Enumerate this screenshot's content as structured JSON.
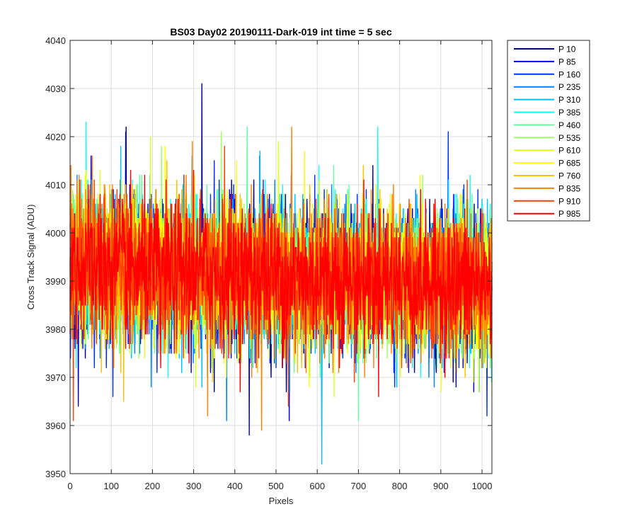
{
  "chart_data": {
    "type": "line",
    "title": "BS03 Day02 20190111-Dark-019 int time = 5 sec",
    "xlabel": "Pixels",
    "ylabel": "Cross Track Signal (ADU)",
    "xlim": [
      0,
      1024
    ],
    "ylim": [
      3950,
      4040
    ],
    "xticks": [
      0,
      100,
      200,
      300,
      400,
      500,
      600,
      700,
      800,
      900,
      1000
    ],
    "yticks": [
      3950,
      3960,
      3970,
      3980,
      3990,
      4000,
      4010,
      4020,
      4030,
      4040
    ],
    "grid": true,
    "legend_position": "outside-top-right",
    "noise_description": "dense noisy traces centered near 3990 ADU, mostly within 3975-4005",
    "mean_start": 3993,
    "mean_end": 3989,
    "series": [
      {
        "name": "P 10",
        "color": "#00008f",
        "spikes": [
          [
            320,
            4031
          ],
          [
            136,
            4022
          ]
        ]
      },
      {
        "name": "P 85",
        "color": "#0000df",
        "spikes": [
          [
            435,
            3958
          ],
          [
            532,
            3961
          ],
          [
            135,
            4021
          ]
        ]
      },
      {
        "name": "P 160",
        "color": "#0030ff",
        "spikes": [
          [
            918,
            4021
          ],
          [
            350,
            4015
          ],
          [
            1012,
            3962
          ]
        ]
      },
      {
        "name": "P 235",
        "color": "#0080ff",
        "spikes": [
          [
            380,
            3961
          ],
          [
            460,
            4016
          ]
        ]
      },
      {
        "name": "P 310",
        "color": "#00c0ff",
        "spikes": [
          [
            611,
            3952
          ],
          [
            320,
            3968
          ]
        ]
      },
      {
        "name": "P 385",
        "color": "#10ffef",
        "spikes": [
          [
            39,
            4023
          ],
          [
            747,
            4022
          ]
        ]
      },
      {
        "name": "P 460",
        "color": "#60ffa0",
        "spikes": [
          [
            700,
            3961
          ],
          [
            640,
            4014
          ]
        ]
      },
      {
        "name": "P 535",
        "color": "#9fff60",
        "spikes": [
          [
            367,
            4021
          ],
          [
            222,
            4018
          ]
        ]
      },
      {
        "name": "P 610",
        "color": "#dfff20",
        "spikes": [
          [
            506,
            4019
          ],
          [
            195,
            4020
          ]
        ]
      },
      {
        "name": "P 685",
        "color": "#ffff00",
        "spikes": [
          [
            850,
            4012
          ],
          [
            580,
            3968
          ]
        ]
      },
      {
        "name": "P 760",
        "color": "#ffc000",
        "spikes": [
          [
            130,
            3965
          ],
          [
            235,
            4015
          ]
        ]
      },
      {
        "name": "P 835",
        "color": "#ff8000",
        "spikes": [
          [
            334,
            3962
          ],
          [
            465,
            3959
          ],
          [
            297,
            4019
          ]
        ]
      },
      {
        "name": "P 910",
        "color": "#ff4000",
        "spikes": [
          [
            8,
            3961
          ],
          [
            530,
            3964
          ],
          [
            375,
            4018
          ]
        ]
      },
      {
        "name": "P 985",
        "color": "#ff0000",
        "spikes": [
          [
            300,
            4013
          ],
          [
            220,
            3972
          ]
        ]
      }
    ]
  }
}
